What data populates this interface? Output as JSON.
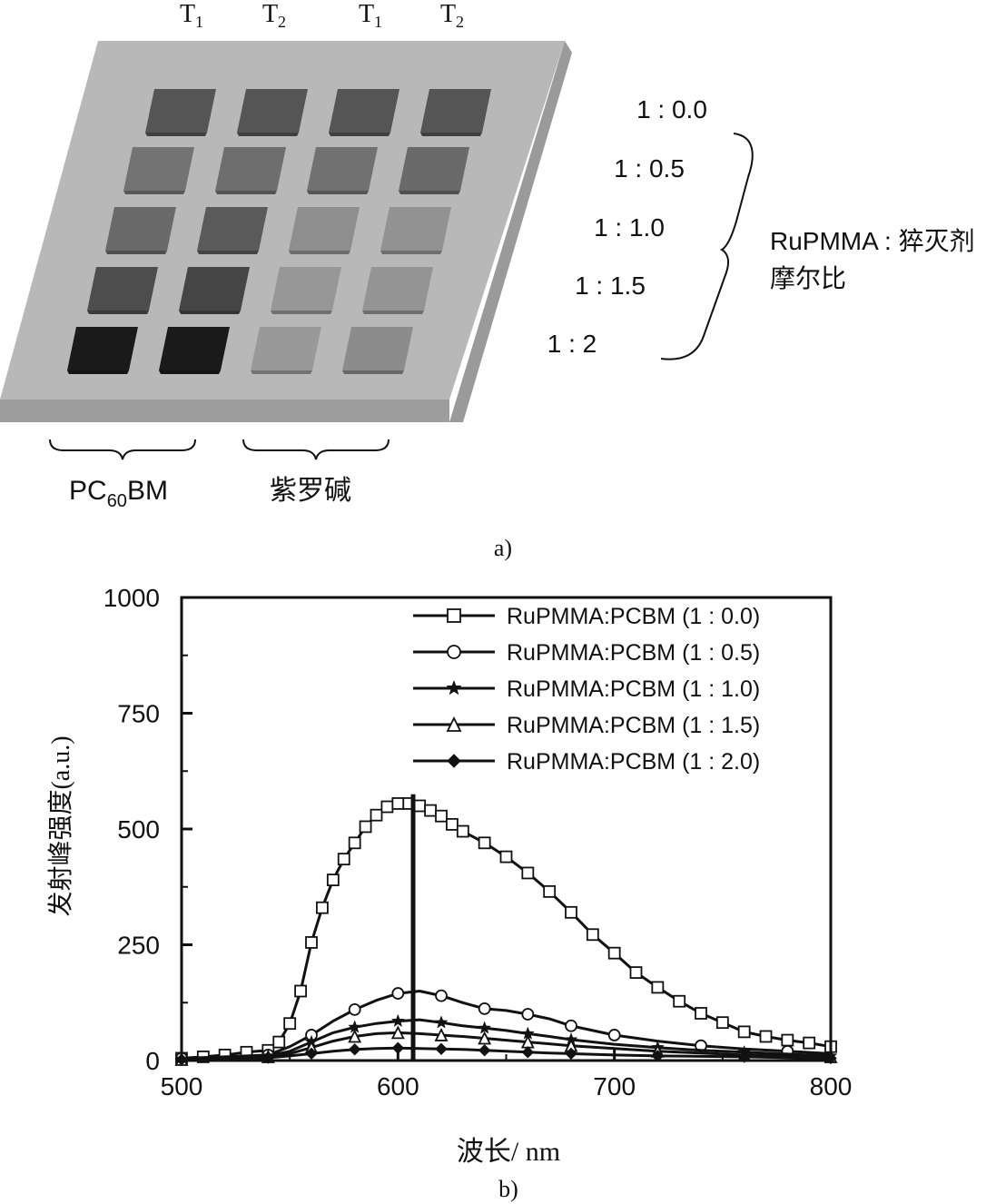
{
  "panel_a": {
    "column_labels": [
      {
        "base": "T",
        "sub": "1"
      },
      {
        "base": "T",
        "sub": "2"
      },
      {
        "base": "T",
        "sub": "1"
      },
      {
        "base": "T",
        "sub": "2"
      }
    ],
    "ratio_labels": [
      "1 : 0.0",
      "1 : 0.5",
      "1 : 1.0",
      "1 : 1.5",
      "1 : 2"
    ],
    "ratio_caption_line1": "RuPMMA : 猝灭剂",
    "ratio_caption_line2": "摩尔比",
    "group_label_left": {
      "base": "PC",
      "sub": "60",
      "tail": "BM"
    },
    "group_label_right": "紫罗碱",
    "caption": "a)",
    "colors": {
      "plate": "#b8b8b8",
      "plate_edge": "#9a9a9a",
      "tiles": [
        [
          "#555555",
          "#555555",
          "#555555",
          "#555555"
        ],
        [
          "#737373",
          "#6e6e6e",
          "#717171",
          "#6a6a6a"
        ],
        [
          "#6a6a6a",
          "#5a5a5a",
          "#8e8e8e",
          "#929292"
        ],
        [
          "#4d4d4d",
          "#454545",
          "#979797",
          "#949494"
        ],
        [
          "#1a1a1a",
          "#1a1a1a",
          "#999999",
          "#8c8c8c"
        ]
      ]
    }
  },
  "chart_data": {
    "type": "line",
    "xlabel": "波长/ nm",
    "ylabel": "发射峰强度(a.u.)",
    "xlim": [
      500,
      800
    ],
    "ylim": [
      0,
      1000
    ],
    "xticks": [
      500,
      600,
      700,
      800
    ],
    "yticks": [
      0,
      250,
      500,
      750,
      1000
    ],
    "legend_position": "top-right",
    "caption": "b)",
    "vertical_line_x": 607,
    "series": [
      {
        "name": "RuPMMA:PCBM (1 : 0.0)",
        "marker": "open-square",
        "x": [
          500,
          510,
          520,
          530,
          540,
          545,
          550,
          555,
          560,
          565,
          570,
          575,
          580,
          585,
          590,
          595,
          600,
          605,
          610,
          615,
          620,
          625,
          630,
          640,
          650,
          660,
          670,
          680,
          690,
          700,
          710,
          720,
          730,
          740,
          750,
          760,
          770,
          780,
          790,
          800
        ],
        "y": [
          5,
          8,
          12,
          18,
          22,
          40,
          80,
          150,
          255,
          330,
          390,
          435,
          470,
          505,
          530,
          548,
          555,
          555,
          550,
          540,
          528,
          510,
          495,
          470,
          440,
          405,
          365,
          320,
          272,
          232,
          190,
          158,
          128,
          102,
          82,
          62,
          52,
          44,
          38,
          30
        ]
      },
      {
        "name": "RuPMMA:PCBM (1 : 0.5)",
        "marker": "open-circle",
        "x": [
          500,
          520,
          540,
          550,
          560,
          570,
          580,
          590,
          600,
          610,
          620,
          630,
          640,
          650,
          660,
          670,
          680,
          690,
          700,
          720,
          740,
          760,
          780,
          800
        ],
        "y": [
          5,
          8,
          12,
          30,
          55,
          85,
          110,
          130,
          145,
          150,
          140,
          125,
          112,
          108,
          100,
          90,
          75,
          65,
          55,
          42,
          32,
          25,
          20,
          15
        ]
      },
      {
        "name": "RuPMMA:PCBM (1 : 1.0)",
        "marker": "filled-star",
        "x": [
          500,
          520,
          540,
          550,
          560,
          570,
          580,
          590,
          600,
          610,
          620,
          630,
          640,
          650,
          660,
          670,
          680,
          700,
          720,
          740,
          760,
          780,
          800
        ],
        "y": [
          3,
          5,
          10,
          20,
          40,
          60,
          72,
          80,
          85,
          88,
          82,
          75,
          70,
          65,
          58,
          52,
          45,
          35,
          28,
          22,
          18,
          14,
          10
        ]
      },
      {
        "name": "RuPMMA:PCBM (1 : 1.5)",
        "marker": "open-triangle",
        "x": [
          500,
          520,
          540,
          550,
          560,
          570,
          580,
          590,
          600,
          610,
          620,
          630,
          640,
          650,
          660,
          670,
          680,
          700,
          720,
          740,
          760,
          780,
          800
        ],
        "y": [
          2,
          4,
          8,
          15,
          28,
          42,
          52,
          58,
          60,
          58,
          55,
          52,
          48,
          44,
          40,
          36,
          32,
          26,
          20,
          16,
          12,
          10,
          8
        ]
      },
      {
        "name": "RuPMMA:PCBM (1 : 2.0)",
        "marker": "filled-diamond",
        "x": [
          500,
          520,
          540,
          550,
          560,
          570,
          580,
          590,
          600,
          610,
          620,
          630,
          640,
          650,
          660,
          670,
          680,
          700,
          720,
          740,
          760,
          780,
          800
        ],
        "y": [
          2,
          3,
          6,
          10,
          15,
          20,
          24,
          26,
          27,
          26,
          25,
          24,
          22,
          20,
          18,
          16,
          15,
          12,
          10,
          9,
          8,
          6,
          5
        ]
      }
    ]
  }
}
